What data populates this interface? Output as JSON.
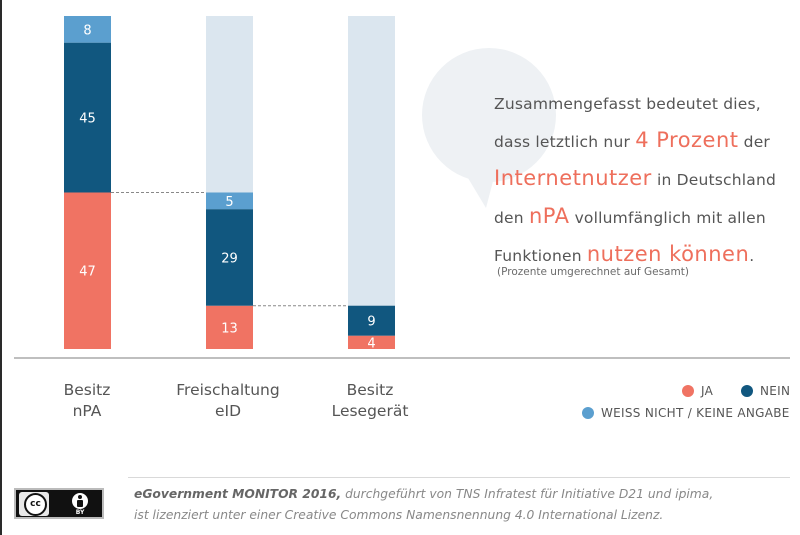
{
  "chart_data": {
    "type": "stacked-bar",
    "categories": [
      [
        "Besitz",
        "nPA"
      ],
      [
        "Freischaltung",
        "eID"
      ],
      [
        "Besitz",
        "Lesegerät"
      ]
    ],
    "base_totals": [
      100,
      47,
      13
    ],
    "series": [
      {
        "key": "ja",
        "name": "JA",
        "values": [
          47,
          13,
          4
        ],
        "color": "#f07363"
      },
      {
        "key": "nein",
        "name": "NEIN",
        "values": [
          45,
          29,
          9
        ],
        "color": "#11577f"
      },
      {
        "key": "weiss",
        "name": "WEISS NICHT / KEINE ANGABE",
        "values": [
          8,
          5,
          null
        ],
        "color": "#5b9fcf"
      }
    ],
    "remainder_color": "#dbe6ef",
    "value_scale_max": 100,
    "legend_position": "bottom-right",
    "unit": "Prozent"
  },
  "summary": {
    "lines": [
      [
        {
          "t": "Zusammengefasst bedeutet dies,"
        }
      ],
      [
        {
          "t": "dass letztlich nur "
        },
        {
          "t": "4 Prozent",
          "hl": true
        },
        {
          "t": " der"
        }
      ],
      [
        {
          "t": "Internetnutzer",
          "hl": true
        },
        {
          "t": " in Deutschland"
        }
      ],
      [
        {
          "t": "den "
        },
        {
          "t": "nPA",
          "hl": true
        },
        {
          "t": " vollumfänglich mit allen"
        }
      ],
      [
        {
          "t": "Funktionen "
        },
        {
          "t": "nutzen können",
          "hl": true
        },
        {
          "t": "."
        }
      ]
    ],
    "note": "(Prozente umgerechnet auf Gesamt)"
  },
  "footer": {
    "title": "eGovernment MONITOR 2016,",
    "line1_rest": " durchgeführt von TNS Infratest für Initiative D21 und ipima,",
    "line2": "ist lizenziert unter einer Creative Commons Namensnennung 4.0 International Lizenz.",
    "license_badge": {
      "cc": "cc",
      "by": "BY"
    }
  },
  "colors": {
    "axis": "#999999",
    "bubble": "#eef1f4",
    "highlight": "#ee6f5c"
  }
}
